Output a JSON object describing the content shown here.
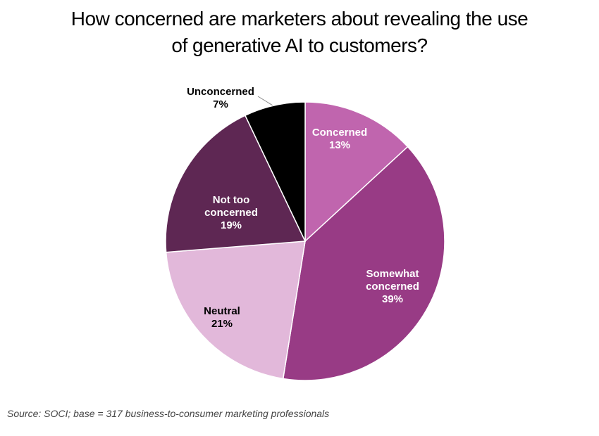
{
  "chart_data": {
    "type": "pie",
    "title": "How concerned are marketers about revealing the use of generative AI to customers?",
    "categories": [
      "Concerned",
      "Somewhat concerned",
      "Neutral",
      "Not too concerned",
      "Unconcerned"
    ],
    "values": [
      13,
      39,
      21,
      19,
      7
    ],
    "value_labels": [
      "13%",
      "39%",
      "21%",
      "19%",
      "7%"
    ],
    "colors": [
      "#c065ae",
      "#983b85",
      "#e2b8da",
      "#5e2753",
      "#000000"
    ],
    "source": "Source: SOCI; base = 317 business-to-consumer marketing professionals"
  }
}
